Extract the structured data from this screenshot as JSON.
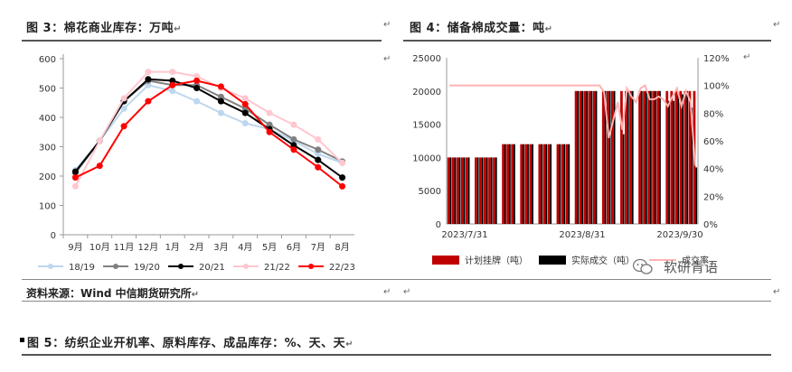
{
  "header": {
    "left_title": "图 3：棉花商业库存：万吨",
    "right_title": "图 4：储备棉成交量：吨",
    "para_mark": "↵"
  },
  "footer": {
    "source": "资料来源：Wind 中信期货研究所",
    "next_title": "图 5：纺织企业开机率、原料库存、成品库存：%、天、天",
    "watermark": "软研青语"
  },
  "colors": {
    "accent_red": "#c00000",
    "black": "#000000",
    "pink": "#ffb3b3"
  },
  "chart_data": [
    {
      "type": "line",
      "categories": [
        "9月",
        "10月",
        "11月",
        "12月",
        "1月",
        "2月",
        "3月",
        "4月",
        "5月",
        "6月",
        "7月",
        "8月"
      ],
      "ylim": [
        0,
        600
      ],
      "yticks": [
        "0",
        "100",
        "200",
        "300",
        "400",
        "500",
        "600"
      ],
      "legend_position": "bottom",
      "series": [
        {
          "name": "18/19",
          "color": "#bdd7ee",
          "values": [
            220,
            320,
            430,
            510,
            490,
            455,
            415,
            380,
            360,
            320,
            275,
            245
          ]
        },
        {
          "name": "19/20",
          "color": "#808080",
          "values": [
            210,
            320,
            455,
            525,
            510,
            510,
            470,
            430,
            375,
            325,
            290,
            250
          ]
        },
        {
          "name": "20/21",
          "color": "#000000",
          "values": [
            215,
            320,
            455,
            530,
            525,
            500,
            455,
            415,
            360,
            305,
            255,
            195
          ]
        },
        {
          "name": "21/22",
          "color": "#ffc7ce",
          "values": [
            165,
            320,
            465,
            555,
            555,
            540,
            500,
            465,
            415,
            375,
            325,
            245
          ]
        },
        {
          "name": "22/23",
          "color": "#ff0000",
          "values": [
            195,
            235,
            370,
            455,
            510,
            525,
            505,
            445,
            350,
            290,
            230,
            165
          ]
        }
      ]
    },
    {
      "type": "bar",
      "x_ticks": [
        "2023/7/31",
        "2023/8/31",
        "2023/9/30"
      ],
      "ylim_left": [
        0,
        25000
      ],
      "yticks_left": [
        "0",
        "5000",
        "10000",
        "15000",
        "20000",
        "25000"
      ],
      "ylim_right": [
        0,
        1.2
      ],
      "yticks_right": [
        "0%",
        "20%",
        "40%",
        "60%",
        "80%",
        "100%",
        "120%"
      ],
      "legend_position": "bottom",
      "series": [
        {
          "name": "计划挂牌（吨）",
          "color": "#c00000",
          "values": [
            10000,
            10000,
            10000,
            10000,
            10000,
            0,
            10000,
            10000,
            10000,
            10000,
            10000,
            0,
            12000,
            12000,
            12000,
            0,
            12000,
            12000,
            12000,
            0,
            12000,
            12000,
            12000,
            0,
            12000,
            12000,
            12000,
            0,
            20000,
            20000,
            20000,
            20000,
            20000,
            0,
            20000,
            20000,
            20000,
            0,
            20000,
            20000,
            20000,
            0,
            20000,
            20000,
            20000,
            20000,
            20000,
            0,
            20000,
            20000,
            20000,
            20000,
            20000,
            20000,
            20000
          ]
        },
        {
          "name": "实际成交（吨）",
          "color": "#000000",
          "values": [
            10000,
            10000,
            10000,
            10000,
            10000,
            0,
            10000,
            10000,
            10000,
            10000,
            10000,
            0,
            12000,
            12000,
            12000,
            0,
            12000,
            12000,
            12000,
            0,
            12000,
            12000,
            12000,
            0,
            12000,
            12000,
            12000,
            0,
            20000,
            20000,
            20000,
            20000,
            20000,
            0,
            20000,
            20000,
            20000,
            0,
            13500,
            20000,
            20000,
            0,
            20000,
            20000,
            20000,
            20000,
            20000,
            0,
            18500,
            18500,
            19500,
            19500,
            20000,
            17500,
            8500
          ]
        },
        {
          "name": "成交率",
          "color": "#ffb3b3",
          "values": [
            1,
            1,
            1,
            1,
            1,
            1,
            1,
            1,
            1,
            1,
            1,
            1,
            1,
            1,
            1,
            1,
            1,
            1,
            1,
            1,
            1,
            1,
            1,
            1,
            1,
            1,
            1,
            1,
            1,
            1,
            1,
            1,
            1,
            1,
            0.95,
            0.62,
            0.75,
            0.88,
            0.68,
            0.98,
            0.92,
            0.88,
            0.98,
            1,
            0.9,
            0.9,
            0.92,
            0.9,
            0.85,
            0.92,
            0.98,
            0.85,
            0.96,
            0.88,
            0.42
          ]
        }
      ]
    }
  ]
}
